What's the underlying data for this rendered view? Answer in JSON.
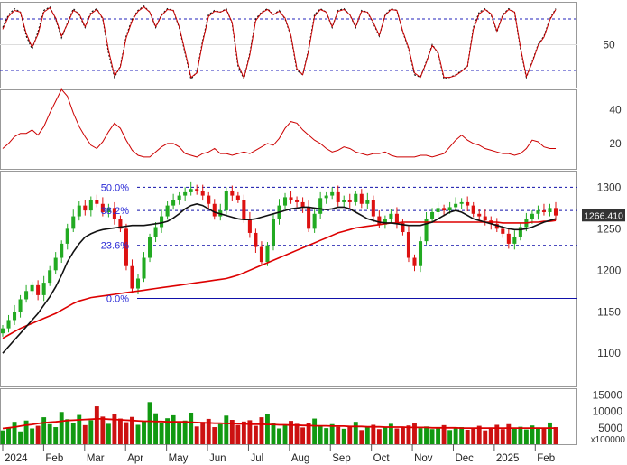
{
  "chart_data": {
    "type": "candlestick",
    "title": "",
    "x_axis": {
      "labels": [
        "2024",
        "Feb",
        "Mar",
        "Apr",
        "May",
        "Jun",
        "Jul",
        "Aug",
        "Sep",
        "Oct",
        "Nov",
        "Dec",
        "2025",
        "Feb"
      ],
      "months_start": "2024-01",
      "months_end": "2025-02"
    },
    "panels": [
      {
        "name": "stochastic",
        "ylim": [
          0,
          100
        ],
        "ticks": [
          "50"
        ],
        "reference_levels": [
          20,
          80
        ],
        "series": [
          {
            "color": "#111111",
            "style": "dotted",
            "values": [
              70,
              85,
              92,
              88,
              60,
              45,
              65,
              90,
              94,
              80,
              58,
              75,
              92,
              85,
              70,
              88,
              92,
              80,
              40,
              12,
              25,
              60,
              80,
              90,
              95,
              88,
              70,
              85,
              92,
              90,
              70,
              40,
              10,
              18,
              55,
              85,
              90,
              88,
              92,
              75,
              25,
              10,
              40,
              80,
              88,
              92,
              85,
              90,
              80,
              60,
              20,
              15,
              45,
              85,
              92,
              88,
              70,
              90,
              92,
              85,
              70,
              90,
              88,
              75,
              60,
              85,
              92,
              90,
              65,
              45,
              15,
              12,
              30,
              50,
              40,
              10,
              12,
              15,
              20,
              25,
              70,
              88,
              92,
              85,
              65,
              85,
              92,
              88,
              45,
              12,
              30,
              50,
              60,
              80,
              92
            ]
          },
          {
            "color": "#cc0000",
            "style": "solid",
            "values": [
              68,
              83,
              90,
              88,
              63,
              47,
              62,
              88,
              93,
              81,
              60,
              74,
              90,
              86,
              71,
              86,
              91,
              81,
              43,
              14,
              24,
              58,
              78,
              89,
              94,
              88,
              71,
              84,
              91,
              90,
              71,
              42,
              12,
              17,
              53,
              83,
              89,
              88,
              91,
              76,
              27,
              11,
              38,
              78,
              87,
              91,
              85,
              89,
              81,
              61,
              22,
              15,
              43,
              83,
              91,
              88,
              71,
              89,
              91,
              85,
              71,
              89,
              88,
              76,
              61,
              84,
              91,
              90,
              66,
              46,
              17,
              12,
              29,
              49,
              41,
              12,
              12,
              14,
              19,
              25,
              68,
              86,
              91,
              86,
              66,
              84,
              91,
              88,
              47,
              13,
              29,
              49,
              59,
              79,
              91
            ]
          }
        ]
      },
      {
        "name": "adx",
        "ticks": [
          "40",
          "20"
        ],
        "ylim": [
          5,
          52
        ],
        "series": [
          {
            "color": "#cc0000",
            "values": [
              17,
              20,
              24,
              26,
              26,
              28,
              25,
              30,
              38,
              45,
              52,
              48,
              38,
              30,
              24,
              19,
              17,
              21,
              27,
              32,
              29,
              22,
              16,
              13,
              12,
              12,
              15,
              18,
              20,
              20,
              18,
              14,
              13,
              12,
              14,
              15,
              17,
              14,
              14,
              13,
              14,
              15,
              14,
              16,
              18,
              20,
              19,
              23,
              29,
              33,
              32,
              28,
              25,
              22,
              20,
              17,
              15,
              16,
              18,
              17,
              15,
              14,
              13,
              14,
              14,
              15,
              13,
              12,
              12,
              12,
              12,
              13,
              13,
              12,
              13,
              14,
              18,
              22,
              25,
              22,
              20,
              19,
              17,
              16,
              15,
              14,
              14,
              13,
              14,
              17,
              22,
              21,
              18,
              17,
              17
            ]
          }
        ]
      },
      {
        "name": "price",
        "ylim": [
          1060,
          1320
        ],
        "ticks": [
          "1300",
          "1250",
          "1200",
          "1150",
          "1100"
        ],
        "last_price": "1266.410",
        "fibonacci": [
          {
            "label": "50.0%",
            "value": 1300
          },
          {
            "label": "38.2%",
            "value": 1272
          },
          {
            "label": "23.6%",
            "value": 1230
          },
          {
            "label": "0.0%",
            "value": 1166
          }
        ],
        "close": [
          1130,
          1140,
          1150,
          1165,
          1175,
          1182,
          1170,
          1185,
          1200,
          1215,
          1232,
          1250,
          1265,
          1278,
          1272,
          1285,
          1280,
          1270,
          1275,
          1262,
          1250,
          1205,
          1178,
          1190,
          1215,
          1240,
          1252,
          1265,
          1278,
          1285,
          1290,
          1294,
          1298,
          1296,
          1290,
          1280,
          1265,
          1272,
          1295,
          1290,
          1285,
          1262,
          1245,
          1228,
          1210,
          1230,
          1262,
          1278,
          1288,
          1285,
          1282,
          1276,
          1250,
          1268,
          1287,
          1290,
          1294,
          1282,
          1285,
          1282,
          1292,
          1280,
          1285,
          1265,
          1255,
          1262,
          1268,
          1257,
          1246,
          1215,
          1205,
          1235,
          1262,
          1270,
          1275,
          1272,
          1276,
          1280,
          1282,
          1278,
          1268,
          1265,
          1260,
          1256,
          1250,
          1244,
          1232,
          1240,
          1252,
          1262,
          1268,
          1272,
          1270,
          1275,
          1266
        ],
        "ma_black": [
          1100,
          1108,
          1116,
          1124,
          1132,
          1140,
          1148,
          1158,
          1168,
          1180,
          1194,
          1210,
          1222,
          1232,
          1240,
          1244,
          1247,
          1249,
          1250,
          1251,
          1252,
          1253,
          1254,
          1254,
          1254,
          1255,
          1256,
          1257,
          1259,
          1263,
          1268,
          1274,
          1278,
          1280,
          1278,
          1274,
          1270,
          1268,
          1266,
          1264,
          1262,
          1261,
          1261,
          1262,
          1264,
          1266,
          1268,
          1270,
          1272,
          1274,
          1275,
          1276,
          1276,
          1275,
          1274,
          1273,
          1274,
          1276,
          1276,
          1274,
          1270,
          1266,
          1262,
          1260,
          1258,
          1257,
          1257,
          1256,
          1255,
          1254,
          1254,
          1254,
          1256,
          1258,
          1262,
          1266,
          1270,
          1272,
          1270,
          1266,
          1262,
          1260,
          1258,
          1256,
          1254,
          1252,
          1250,
          1249,
          1249,
          1250,
          1252,
          1255,
          1258,
          1260,
          1262
        ],
        "ma_red": [
          1118,
          1122,
          1126,
          1130,
          1133,
          1136,
          1139,
          1142,
          1145,
          1148,
          1152,
          1156,
          1160,
          1163,
          1165,
          1167,
          1168,
          1169,
          1170,
          1171,
          1172,
          1173,
          1174,
          1175,
          1176,
          1177,
          1178,
          1179,
          1180,
          1181,
          1182,
          1183,
          1184,
          1185,
          1186,
          1187,
          1188,
          1189,
          1190,
          1192,
          1194,
          1197,
          1200,
          1203,
          1206,
          1209,
          1212,
          1215,
          1218,
          1221,
          1224,
          1227,
          1230,
          1233,
          1236,
          1239,
          1242,
          1245,
          1247,
          1249,
          1251,
          1252,
          1253,
          1254,
          1255,
          1256,
          1257,
          1257,
          1258,
          1258,
          1258,
          1258,
          1258,
          1258,
          1258,
          1258,
          1258,
          1258,
          1258,
          1258,
          1258,
          1258,
          1258,
          1258,
          1258,
          1257,
          1257,
          1257,
          1257,
          1257,
          1258,
          1258,
          1259,
          1259,
          1260
        ]
      },
      {
        "name": "volume",
        "ylim": [
          0,
          17000
        ],
        "ticks": [
          "15000",
          "10000",
          "5000"
        ],
        "unit_label": "x100000",
        "volume": [
          4200,
          5100,
          6800,
          3900,
          7200,
          4800,
          5600,
          8200,
          6100,
          5200,
          9800,
          7600,
          6400,
          8900,
          5800,
          7300,
          11500,
          8400,
          6200,
          9100,
          7800,
          6700,
          8300,
          5900,
          7100,
          12800,
          9400,
          6600,
          7900,
          8800,
          6300,
          7200,
          9600,
          5400,
          6800,
          7700,
          5200,
          6100,
          8700,
          7400,
          5800,
          6900,
          7300,
          5600,
          8200,
          9300,
          6500,
          4800,
          5900,
          7100,
          6200,
          5100,
          6400,
          7800,
          5500,
          4900,
          6100,
          5300,
          4700,
          5600,
          6800,
          4300,
          5200,
          5900,
          4600,
          5300,
          6200,
          4800,
          5100,
          5700,
          6300,
          4900,
          5400,
          4600,
          5100,
          5800,
          4300,
          4800,
          5200,
          4400,
          4900,
          5600,
          4200,
          5100,
          5900,
          4600,
          6100,
          4800,
          5300,
          4500,
          5700,
          5100,
          4700,
          6600,
          5200
        ],
        "ma_red": [
          4800,
          5000,
          5200,
          5500,
          5800,
          6000,
          6300,
          6500,
          6700,
          6800,
          7000,
          7200,
          7300,
          7400,
          7500,
          7600,
          7700,
          7700,
          7600,
          7500,
          7400,
          7300,
          7200,
          7100,
          7000,
          7000,
          6900,
          6900,
          6800,
          6800,
          6800,
          6800,
          6700,
          6600,
          6500,
          6500,
          6400,
          6400,
          6300,
          6300,
          6200,
          6200,
          6100,
          6100,
          6100,
          6000,
          6000,
          5900,
          5900,
          5800,
          5800,
          5700,
          5700,
          5600,
          5600,
          5600,
          5500,
          5500,
          5500,
          5400,
          5400,
          5400,
          5300,
          5300,
          5300,
          5200,
          5200,
          5200,
          5200,
          5100,
          5100,
          5100,
          5100,
          5000,
          5000,
          5000,
          5000,
          5000,
          4900,
          4900,
          4900,
          4900,
          4900,
          4900,
          4900,
          4900,
          4900,
          4900,
          4900,
          4900,
          4900,
          4900,
          4900,
          4900,
          4900
        ]
      }
    ],
    "colors": {
      "up": "#22aa22",
      "down": "#dd1111",
      "ma_black": "#111111",
      "ma_red": "#dd0000",
      "fib": "#1111aa",
      "grid": "#8a8a8a",
      "price_box": "#333333"
    }
  }
}
